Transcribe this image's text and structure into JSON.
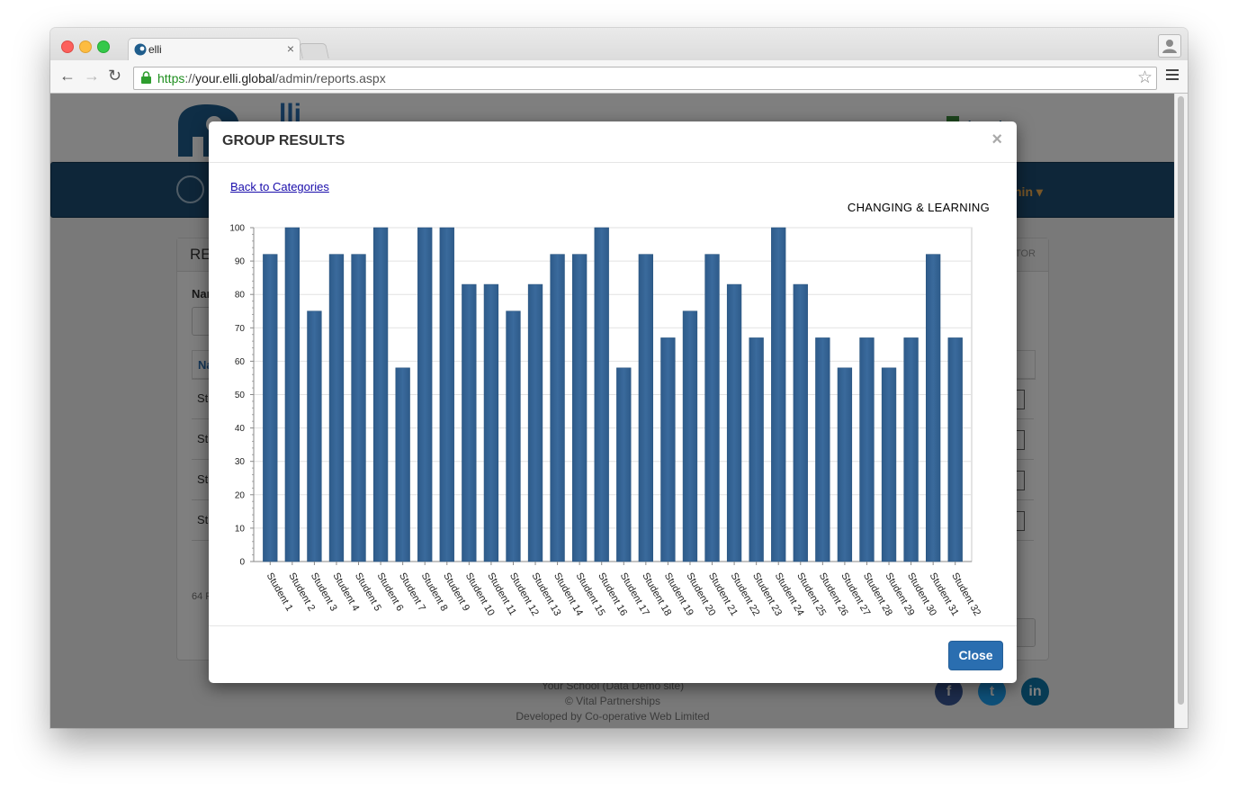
{
  "browser": {
    "tab_title": "elli",
    "tab_close": "×",
    "url_scheme": "https",
    "url_sep": "://",
    "url_host": "your.elli.global",
    "url_path": "/admin/reports.aspx"
  },
  "site": {
    "logo_text": "lli",
    "school_name": "choool",
    "admin_label": "nin ▾",
    "panel_title": "RE",
    "panel_right": "TOR",
    "name_label": "Nar",
    "col_head": "Na",
    "row_prefix": "St",
    "count_prefix": "64 F",
    "footer_lines": [
      "Your School (Data Demo site)",
      "© Vital Partnerships",
      "Developed by Co-operative Web Limited"
    ],
    "social": [
      "f",
      "t",
      "in"
    ]
  },
  "modal": {
    "title": "GROUP RESULTS",
    "close_x": "×",
    "back_link": "Back to Categories",
    "close_button": "Close"
  },
  "chart_data": {
    "type": "bar",
    "title": "CHANGING & LEARNING",
    "categories": [
      "Student 1",
      "Student 2",
      "Student 3",
      "Student 4",
      "Student 5",
      "Student 6",
      "Student 7",
      "Student 8",
      "Student 9",
      "Student 10",
      "Student 11",
      "Student 12",
      "Student 13",
      "Student 14",
      "Student 15",
      "Student 16",
      "Student 17",
      "Student 18",
      "Student 19",
      "Student 20",
      "Student 21",
      "Student 22",
      "Student 23",
      "Student 24",
      "Student 25",
      "Student 26",
      "Student 27",
      "Student 28",
      "Student 29",
      "Student 30",
      "Student 31",
      "Student 32"
    ],
    "values": [
      92,
      100,
      75,
      92,
      92,
      100,
      58,
      100,
      100,
      83,
      83,
      75,
      83,
      92,
      92,
      100,
      58,
      92,
      67,
      75,
      92,
      83,
      67,
      100,
      83,
      67,
      58,
      67,
      58,
      67,
      92,
      67
    ],
    "ylim": [
      0,
      100
    ],
    "yticks": [
      0,
      10,
      20,
      30,
      40,
      50,
      60,
      70,
      80,
      90,
      100
    ],
    "grid": true,
    "bar_color": "#3a6a9c"
  }
}
